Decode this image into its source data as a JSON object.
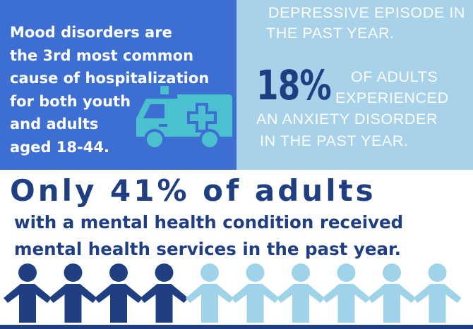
{
  "colors": {
    "dark_navy": "#1f3f82",
    "medium_blue": "#3c6fd1",
    "light_blue": "#a8d1ea",
    "icon_teal": "#4bc1d0",
    "person_dark": "#1f3f82",
    "person_light": "#9fd3ea",
    "white": "#ffffff"
  },
  "left_panel": {
    "lines": [
      "Mood disorders are",
      "the 3rd most common",
      "cause of hospitalization",
      "for both youth",
      "and adults",
      "aged 18-44."
    ],
    "icon": "ambulance-icon"
  },
  "right_panel": {
    "top_line1": "DEPRESSIVE EPISODE IN",
    "top_line2": "THE PAST YEAR.",
    "stat": "18%",
    "stat_line1": "OF ADULTS",
    "stat_line2": "EXPERIENCED",
    "stat_line3": "AN ANXIETY DISORDER",
    "stat_line4": "IN THE PAST YEAR."
  },
  "bottom": {
    "headline": "Only 41% of adults",
    "line1": "with a mental health condition received",
    "line2": "mental health services in the past year.",
    "people_total": 10,
    "people_highlighted": 4,
    "icon": "person-icon"
  }
}
